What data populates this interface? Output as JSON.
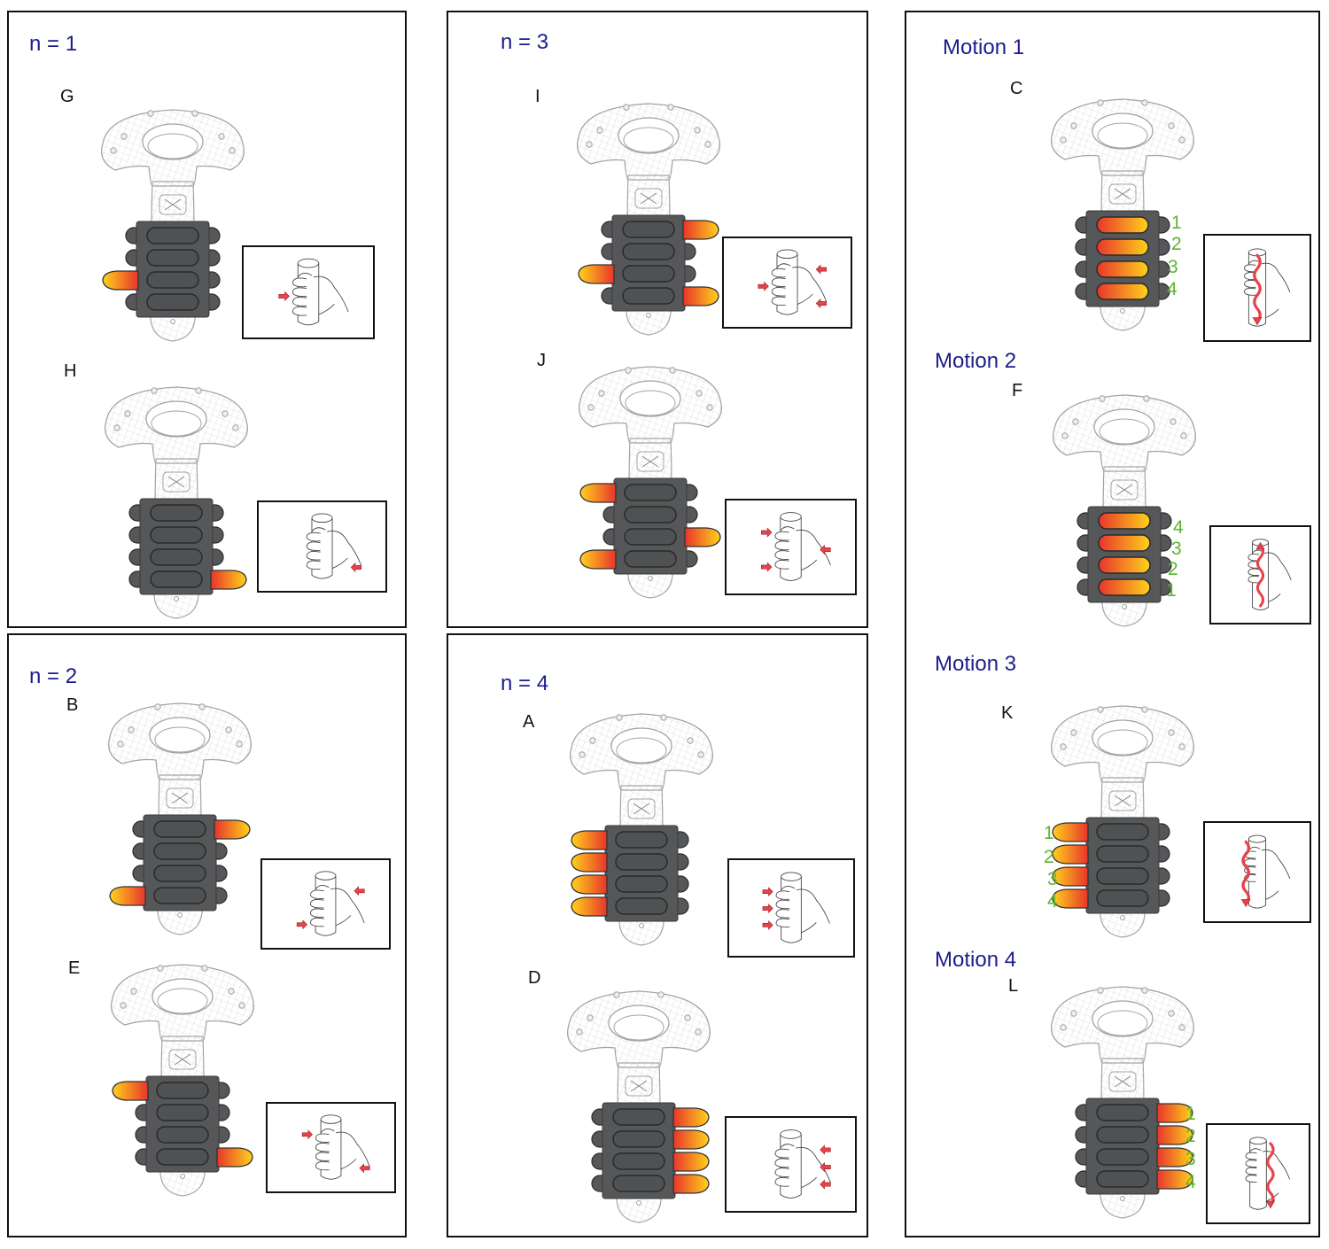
{
  "panels": [
    {
      "id": "p1",
      "title": "n = 1"
    },
    {
      "id": "p2",
      "title": "n = 3"
    },
    {
      "id": "p3",
      "title": "Motion 1"
    },
    {
      "id": "p4",
      "title": "n = 2"
    },
    {
      "id": "p5",
      "title": "n = 4"
    }
  ],
  "motion_titles": [
    "Motion 2",
    "Motion 3",
    "Motion 4"
  ],
  "colors": {
    "title": "#1c1c8c",
    "number": "#5bb52d",
    "band": "#555759",
    "arrow": "#e8424a",
    "actuator_from": "#e8352b",
    "actuator_to": "#ffd21c",
    "wireframe": "#a4a4a4"
  },
  "figures": [
    {
      "letter": "G",
      "actuators": [
        "L3"
      ],
      "numbers": [],
      "cue": "press",
      "arrows": [
        "front-mid"
      ]
    },
    {
      "letter": "H",
      "actuators": [
        "R4"
      ],
      "numbers": [],
      "cue": "press",
      "arrows": [
        "back-low"
      ]
    },
    {
      "letter": "I",
      "actuators": [
        "R1",
        "L3",
        "R4"
      ],
      "numbers": [],
      "cue": "press",
      "arrows": [
        "back-top",
        "front-mid",
        "back-low"
      ]
    },
    {
      "letter": "J",
      "actuators": [
        "L1",
        "R3",
        "L4"
      ],
      "numbers": [],
      "cue": "press",
      "arrows": [
        "front-top",
        "back-mid",
        "front-low"
      ]
    },
    {
      "letter": "C",
      "actuators": [
        "I1",
        "I2",
        "I3",
        "I4"
      ],
      "numbers": [
        "1",
        "2",
        "3",
        "4"
      ],
      "cue": "wave-down",
      "arrows": []
    },
    {
      "letter": "F",
      "actuators": [
        "I1",
        "I2",
        "I3",
        "I4"
      ],
      "numbers": [
        "4",
        "3",
        "2",
        "1"
      ],
      "cue": "wave-up",
      "arrows": []
    },
    {
      "letter": "B",
      "actuators": [
        "R1",
        "L4"
      ],
      "numbers": [],
      "cue": "press",
      "arrows": [
        "back-top",
        "front-low"
      ]
    },
    {
      "letter": "E",
      "actuators": [
        "L1",
        "R4"
      ],
      "numbers": [],
      "cue": "press",
      "arrows": [
        "front-top",
        "back-low"
      ]
    },
    {
      "letter": "A",
      "actuators": [
        "L1",
        "L2",
        "L3",
        "L4"
      ],
      "numbers": [],
      "cue": "press",
      "arrows": [
        "front-top",
        "front-mid",
        "front-low"
      ]
    },
    {
      "letter": "D",
      "actuators": [
        "R1",
        "R2",
        "R3",
        "R4"
      ],
      "numbers": [],
      "cue": "press",
      "arrows": [
        "back-top",
        "back-mid",
        "back-low"
      ]
    },
    {
      "letter": "K",
      "actuators": [
        "L1",
        "L2",
        "L3",
        "L4"
      ],
      "numbers": [
        "1",
        "2",
        "3",
        "4"
      ],
      "cue": "wave-down-front",
      "arrows": []
    },
    {
      "letter": "L",
      "actuators": [
        "R1",
        "R2",
        "R3",
        "R4"
      ],
      "numbers": [
        "1",
        "2",
        "3",
        "4"
      ],
      "cue": "wave-down-back",
      "arrows": []
    }
  ]
}
